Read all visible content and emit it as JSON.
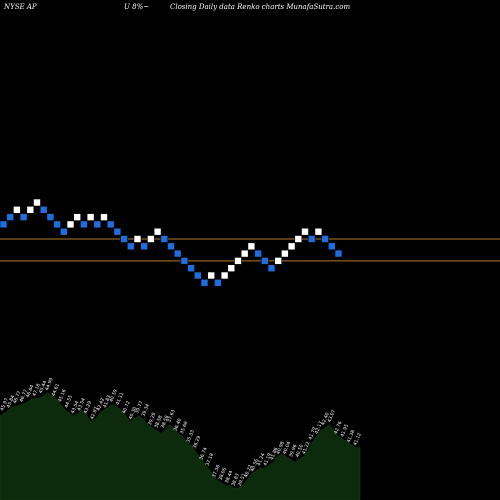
{
  "header": {
    "ticker": "NYSE AP",
    "change": "U 8%~",
    "description": "Closing Daily data  Renko  charts MunafaSutra.com"
  },
  "colors": {
    "background": "#000000",
    "up_brick": "#ffffff",
    "down_brick": "#1e6ee0",
    "level_line": "#b07a2a",
    "volume_fill": "#0c2a0c"
  },
  "chart_data": {
    "type": "renko",
    "bricks": [
      {
        "level": 10,
        "dir": "down"
      },
      {
        "level": 11,
        "dir": "down"
      },
      {
        "level": 12,
        "dir": "up"
      },
      {
        "level": 11,
        "dir": "down"
      },
      {
        "level": 12,
        "dir": "up"
      },
      {
        "level": 13,
        "dir": "up"
      },
      {
        "level": 12,
        "dir": "down"
      },
      {
        "level": 11,
        "dir": "down"
      },
      {
        "level": 10,
        "dir": "down"
      },
      {
        "level": 9,
        "dir": "down"
      },
      {
        "level": 10,
        "dir": "up"
      },
      {
        "level": 11,
        "dir": "up"
      },
      {
        "level": 10,
        "dir": "down"
      },
      {
        "level": 11,
        "dir": "up"
      },
      {
        "level": 10,
        "dir": "down"
      },
      {
        "level": 11,
        "dir": "up"
      },
      {
        "level": 10,
        "dir": "down"
      },
      {
        "level": 9,
        "dir": "down"
      },
      {
        "level": 8,
        "dir": "down"
      },
      {
        "level": 7,
        "dir": "down"
      },
      {
        "level": 8,
        "dir": "up"
      },
      {
        "level": 7,
        "dir": "down"
      },
      {
        "level": 8,
        "dir": "up"
      },
      {
        "level": 9,
        "dir": "up"
      },
      {
        "level": 8,
        "dir": "down"
      },
      {
        "level": 7,
        "dir": "down"
      },
      {
        "level": 6,
        "dir": "down"
      },
      {
        "level": 5,
        "dir": "down"
      },
      {
        "level": 4,
        "dir": "down"
      },
      {
        "level": 3,
        "dir": "down"
      },
      {
        "level": 2,
        "dir": "down"
      },
      {
        "level": 3,
        "dir": "up"
      },
      {
        "level": 2,
        "dir": "down"
      },
      {
        "level": 3,
        "dir": "up"
      },
      {
        "level": 4,
        "dir": "up"
      },
      {
        "level": 5,
        "dir": "up"
      },
      {
        "level": 6,
        "dir": "up"
      },
      {
        "level": 7,
        "dir": "up"
      },
      {
        "level": 6,
        "dir": "down"
      },
      {
        "level": 5,
        "dir": "down"
      },
      {
        "level": 4,
        "dir": "down"
      },
      {
        "level": 5,
        "dir": "up"
      },
      {
        "level": 6,
        "dir": "up"
      },
      {
        "level": 7,
        "dir": "up"
      },
      {
        "level": 8,
        "dir": "up"
      },
      {
        "level": 9,
        "dir": "up"
      },
      {
        "level": 8,
        "dir": "down"
      },
      {
        "level": 9,
        "dir": "up"
      },
      {
        "level": 8,
        "dir": "down"
      },
      {
        "level": 7,
        "dir": "down"
      },
      {
        "level": 6,
        "dir": "down"
      }
    ],
    "reference_levels": [
      8,
      5
    ],
    "volume_profile": [
      58,
      60,
      62,
      64,
      65,
      66,
      67,
      69,
      70,
      70,
      72,
      74,
      72,
      70,
      66,
      62,
      60,
      58,
      60,
      62,
      58,
      54,
      56,
      60,
      62,
      64,
      66,
      64,
      62,
      58,
      54,
      56,
      58,
      56,
      52,
      50,
      48,
      46,
      48,
      52,
      50,
      46,
      44,
      40,
      38,
      34,
      30,
      26,
      22,
      18,
      14,
      12,
      10,
      10,
      8,
      8,
      10,
      14,
      18,
      20,
      22,
      22,
      24,
      26,
      30,
      32,
      30,
      28,
      26,
      28,
      30,
      34,
      40,
      44,
      48,
      50,
      52,
      48,
      44,
      42,
      40,
      38,
      36,
      36
    ],
    "value_labels": [
      "45.97",
      "45.84",
      "46.77",
      "46.77",
      "46.64",
      "47.18",
      "45.44",
      "44.99",
      "44.61",
      "45.16",
      "44.55",
      "43.54",
      "43.54",
      "43.29",
      "42.87",
      "42.42",
      "41.83",
      "40.59",
      "41.11",
      "40.72",
      "40.30",
      "39.77",
      "39.34",
      "39.29",
      "38.58",
      "38.58",
      "37.63",
      "36.40",
      "35.69",
      "35.33",
      "36.29",
      "36.74",
      "37.18",
      "37.56",
      "38.06",
      "38.44",
      "38.83",
      "39.51",
      "40.22",
      "40.56",
      "41.24",
      "41.19",
      "41.86",
      "40.98",
      "40.04",
      "39.96",
      "40.50",
      "41.22",
      "41.79",
      "42.17",
      "42.40",
      "43.07",
      "42.76",
      "41.95",
      "41.38",
      "41.12"
    ]
  }
}
